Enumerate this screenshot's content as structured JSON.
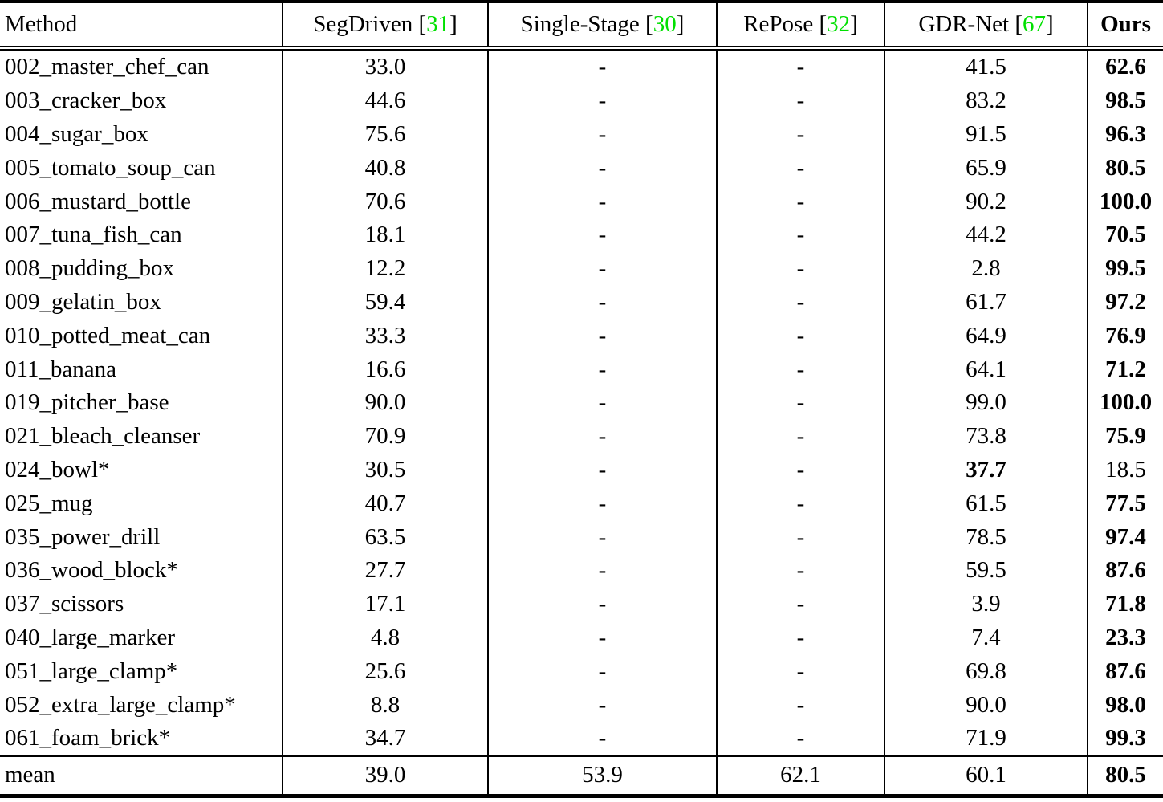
{
  "colors": {
    "citation_green": "#00E000",
    "text": "#000000",
    "background": "#ffffff"
  },
  "table": {
    "columns": [
      {
        "label": "Method",
        "cite": null
      },
      {
        "label": "SegDriven",
        "cite": "31"
      },
      {
        "label": "Single-Stage",
        "cite": "30"
      },
      {
        "label": "RePose",
        "cite": "32"
      },
      {
        "label": "GDR-Net",
        "cite": "67"
      },
      {
        "label": "Ours",
        "cite": null
      }
    ],
    "rows": [
      {
        "method": "002_master_chef_can",
        "cells": [
          {
            "t": "33.0"
          },
          {
            "t": "-"
          },
          {
            "t": "-"
          },
          {
            "t": "41.5"
          },
          {
            "t": "62.6",
            "b": true
          }
        ]
      },
      {
        "method": "003_cracker_box",
        "cells": [
          {
            "t": "44.6"
          },
          {
            "t": "-"
          },
          {
            "t": "-"
          },
          {
            "t": "83.2"
          },
          {
            "t": "98.5",
            "b": true
          }
        ]
      },
      {
        "method": "004_sugar_box",
        "cells": [
          {
            "t": "75.6"
          },
          {
            "t": "-"
          },
          {
            "t": "-"
          },
          {
            "t": "91.5"
          },
          {
            "t": "96.3",
            "b": true
          }
        ]
      },
      {
        "method": "005_tomato_soup_can",
        "cells": [
          {
            "t": "40.8"
          },
          {
            "t": "-"
          },
          {
            "t": "-"
          },
          {
            "t": "65.9"
          },
          {
            "t": "80.5",
            "b": true
          }
        ]
      },
      {
        "method": "006_mustard_bottle",
        "cells": [
          {
            "t": "70.6"
          },
          {
            "t": "-"
          },
          {
            "t": "-"
          },
          {
            "t": "90.2"
          },
          {
            "t": "100.0",
            "b": true
          }
        ]
      },
      {
        "method": "007_tuna_fish_can",
        "cells": [
          {
            "t": "18.1"
          },
          {
            "t": "-"
          },
          {
            "t": "-"
          },
          {
            "t": "44.2"
          },
          {
            "t": "70.5",
            "b": true
          }
        ]
      },
      {
        "method": "008_pudding_box",
        "cells": [
          {
            "t": "12.2"
          },
          {
            "t": "-"
          },
          {
            "t": "-"
          },
          {
            "t": "2.8"
          },
          {
            "t": "99.5",
            "b": true
          }
        ]
      },
      {
        "method": "009_gelatin_box",
        "cells": [
          {
            "t": "59.4"
          },
          {
            "t": "-"
          },
          {
            "t": "-"
          },
          {
            "t": "61.7"
          },
          {
            "t": "97.2",
            "b": true
          }
        ]
      },
      {
        "method": "010_potted_meat_can",
        "cells": [
          {
            "t": "33.3"
          },
          {
            "t": "-"
          },
          {
            "t": "-"
          },
          {
            "t": "64.9"
          },
          {
            "t": "76.9",
            "b": true
          }
        ]
      },
      {
        "method": "011_banana",
        "cells": [
          {
            "t": "16.6"
          },
          {
            "t": "-"
          },
          {
            "t": "-"
          },
          {
            "t": "64.1"
          },
          {
            "t": "71.2",
            "b": true
          }
        ]
      },
      {
        "method": "019_pitcher_base",
        "cells": [
          {
            "t": "90.0"
          },
          {
            "t": "-"
          },
          {
            "t": "-"
          },
          {
            "t": "99.0"
          },
          {
            "t": "100.0",
            "b": true
          }
        ]
      },
      {
        "method": "021_bleach_cleanser",
        "cells": [
          {
            "t": "70.9"
          },
          {
            "t": "-"
          },
          {
            "t": "-"
          },
          {
            "t": "73.8"
          },
          {
            "t": "75.9",
            "b": true
          }
        ]
      },
      {
        "method": "024_bowl*",
        "cells": [
          {
            "t": "30.5"
          },
          {
            "t": "-"
          },
          {
            "t": "-"
          },
          {
            "t": "37.7",
            "b": true
          },
          {
            "t": "18.5"
          }
        ]
      },
      {
        "method": "025_mug",
        "cells": [
          {
            "t": "40.7"
          },
          {
            "t": "-"
          },
          {
            "t": "-"
          },
          {
            "t": "61.5"
          },
          {
            "t": "77.5",
            "b": true
          }
        ]
      },
      {
        "method": "035_power_drill",
        "cells": [
          {
            "t": "63.5"
          },
          {
            "t": "-"
          },
          {
            "t": "-"
          },
          {
            "t": "78.5"
          },
          {
            "t": "97.4",
            "b": true
          }
        ]
      },
      {
        "method": "036_wood_block*",
        "cells": [
          {
            "t": "27.7"
          },
          {
            "t": "-"
          },
          {
            "t": "-"
          },
          {
            "t": "59.5"
          },
          {
            "t": "87.6",
            "b": true
          }
        ]
      },
      {
        "method": "037_scissors",
        "cells": [
          {
            "t": "17.1"
          },
          {
            "t": "-"
          },
          {
            "t": "-"
          },
          {
            "t": "3.9"
          },
          {
            "t": "71.8",
            "b": true
          }
        ]
      },
      {
        "method": "040_large_marker",
        "cells": [
          {
            "t": "4.8"
          },
          {
            "t": "-"
          },
          {
            "t": "-"
          },
          {
            "t": "7.4"
          },
          {
            "t": "23.3",
            "b": true
          }
        ]
      },
      {
        "method": "051_large_clamp*",
        "cells": [
          {
            "t": "25.6"
          },
          {
            "t": "-"
          },
          {
            "t": "-"
          },
          {
            "t": "69.8"
          },
          {
            "t": "87.6",
            "b": true
          }
        ]
      },
      {
        "method": "052_extra_large_clamp*",
        "cells": [
          {
            "t": "8.8"
          },
          {
            "t": "-"
          },
          {
            "t": "-"
          },
          {
            "t": "90.0"
          },
          {
            "t": "98.0",
            "b": true
          }
        ]
      },
      {
        "method": "061_foam_brick*",
        "cells": [
          {
            "t": "34.7"
          },
          {
            "t": "-"
          },
          {
            "t": "-"
          },
          {
            "t": "71.9"
          },
          {
            "t": "99.3",
            "b": true
          }
        ]
      }
    ],
    "mean_row": {
      "method": "mean",
      "cells": [
        {
          "t": "39.0"
        },
        {
          "t": "53.9"
        },
        {
          "t": "62.1"
        },
        {
          "t": "60.1"
        },
        {
          "t": "80.5",
          "b": true
        }
      ]
    }
  }
}
